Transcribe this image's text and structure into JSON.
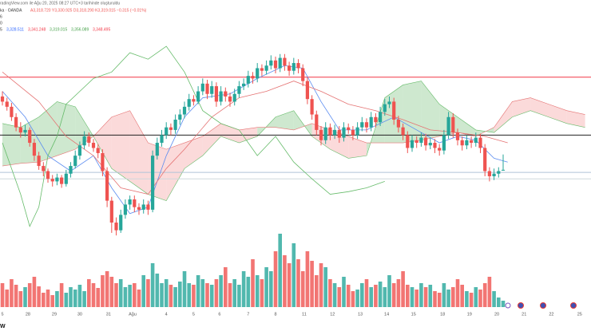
{
  "chart_data": {
    "type": "candlestick",
    "header": {
      "credit": "radingView.com ile Ağu 20, 2025 08:27 UTC+3 tarihinde oluşturuldu",
      "symbol": "ka · OANDA",
      "quote": "A3,318.720 Y3,330.925 D3,318.290 K3,319.015 −0.315 (−0.01%)",
      "rows": [
        "6",
        "0"
      ],
      "indicator": [
        {
          "text": "5",
          "color": "#333333"
        },
        {
          "text": "3,328.511",
          "color": "#2962ff"
        },
        {
          "text": "3,341.248",
          "color": "#f23645"
        },
        {
          "text": "3,319.015",
          "color": "#43a047"
        },
        {
          "text": "3,356.089",
          "color": "#43a047"
        },
        {
          "text": "3,348.495",
          "color": "#f23645"
        }
      ]
    },
    "up_color": "#26a69a",
    "down_color": "#ef5350",
    "xlim": [
      -0.53,
      129.3
    ],
    "ylim": [
      3265,
      3451
    ],
    "vlim": [
      0,
      100
    ],
    "xticks": [
      {
        "value": 0,
        "label": "5"
      },
      {
        "value": 5.6,
        "label": "28"
      },
      {
        "value": 11.4,
        "label": "29"
      },
      {
        "value": 17,
        "label": "30"
      },
      {
        "value": 23.3,
        "label": "31"
      },
      {
        "value": 28.6,
        "label": "Ağu"
      },
      {
        "value": 36,
        "label": "4"
      },
      {
        "value": 42,
        "label": "5"
      },
      {
        "value": 47.7,
        "label": "6"
      },
      {
        "value": 54,
        "label": "7"
      },
      {
        "value": 60,
        "label": "8"
      },
      {
        "value": 66.3,
        "label": "11"
      },
      {
        "value": 72.5,
        "label": "12"
      },
      {
        "value": 78.6,
        "label": "13"
      },
      {
        "value": 84.4,
        "label": "14"
      },
      {
        "value": 90.3,
        "label": "15"
      },
      {
        "value": 96.7,
        "label": "18"
      },
      {
        "value": 102.6,
        "label": "19"
      },
      {
        "value": 108.6,
        "label": "20"
      },
      {
        "value": 114.6,
        "label": "21"
      },
      {
        "value": 120.6,
        "label": "22"
      },
      {
        "value": 126.8,
        "label": "25"
      }
    ],
    "ohlc": [
      [
        3376,
        3380,
        3369,
        3372
      ],
      [
        3372,
        3375,
        3365,
        3368
      ],
      [
        3368,
        3371,
        3357,
        3360
      ],
      [
        3360,
        3363,
        3349,
        3352
      ],
      [
        3352,
        3356,
        3344,
        3348
      ],
      [
        3348,
        3354,
        3345,
        3350
      ],
      [
        3350,
        3352,
        3337,
        3340
      ],
      [
        3340,
        3343,
        3326,
        3330
      ],
      [
        3330,
        3333,
        3319,
        3322
      ],
      [
        3322,
        3325,
        3314,
        3318
      ],
      [
        3318,
        3320,
        3309,
        3312
      ],
      [
        3312,
        3315,
        3306,
        3310
      ],
      [
        3310,
        3316,
        3307,
        3313
      ],
      [
        3313,
        3315,
        3305,
        3308
      ],
      [
        3308,
        3319,
        3306,
        3316
      ],
      [
        3316,
        3325,
        3313,
        3322
      ],
      [
        3322,
        3334,
        3320,
        3330
      ],
      [
        3330,
        3341,
        3327,
        3338
      ],
      [
        3338,
        3349,
        3335,
        3345
      ],
      [
        3345,
        3348,
        3337,
        3340
      ],
      [
        3340,
        3343,
        3333,
        3336
      ],
      [
        3336,
        3339,
        3328,
        3332
      ],
      [
        3332,
        3335,
        3314,
        3318
      ],
      [
        3318,
        3321,
        3290,
        3295
      ],
      [
        3295,
        3298,
        3270,
        3278
      ],
      [
        3278,
        3282,
        3268,
        3272
      ],
      [
        3272,
        3288,
        3270,
        3284
      ],
      [
        3284,
        3296,
        3281,
        3292
      ],
      [
        3292,
        3299,
        3288,
        3296
      ],
      [
        3296,
        3299,
        3286,
        3290
      ],
      [
        3290,
        3293,
        3284,
        3288
      ],
      [
        3288,
        3296,
        3285,
        3292
      ],
      [
        3292,
        3295,
        3284,
        3288
      ],
      [
        3288,
        3334,
        3286,
        3330
      ],
      [
        3330,
        3344,
        3327,
        3340
      ],
      [
        3340,
        3350,
        3337,
        3346
      ],
      [
        3346,
        3356,
        3343,
        3352
      ],
      [
        3352,
        3355,
        3346,
        3350
      ],
      [
        3350,
        3362,
        3347,
        3358
      ],
      [
        3358,
        3366,
        3354,
        3362
      ],
      [
        3362,
        3372,
        3359,
        3368
      ],
      [
        3368,
        3378,
        3365,
        3374
      ],
      [
        3374,
        3377,
        3369,
        3372
      ],
      [
        3372,
        3384,
        3370,
        3380
      ],
      [
        3380,
        3390,
        3377,
        3386
      ],
      [
        3386,
        3389,
        3374,
        3378
      ],
      [
        3378,
        3388,
        3375,
        3384
      ],
      [
        3384,
        3387,
        3368,
        3372
      ],
      [
        3372,
        3384,
        3369,
        3380
      ],
      [
        3380,
        3383,
        3372,
        3376
      ],
      [
        3376,
        3379,
        3368,
        3372
      ],
      [
        3372,
        3382,
        3369,
        3378
      ],
      [
        3378,
        3388,
        3375,
        3384
      ],
      [
        3384,
        3390,
        3381,
        3386
      ],
      [
        3386,
        3396,
        3383,
        3392
      ],
      [
        3392,
        3395,
        3386,
        3390
      ],
      [
        3390,
        3402,
        3387,
        3398
      ],
      [
        3398,
        3401,
        3392,
        3396
      ],
      [
        3396,
        3404,
        3393,
        3400
      ],
      [
        3400,
        3408,
        3397,
        3404
      ],
      [
        3404,
        3407,
        3394,
        3398
      ],
      [
        3398,
        3409,
        3395,
        3406
      ],
      [
        3406,
        3409,
        3396,
        3400
      ],
      [
        3400,
        3403,
        3392,
        3396
      ],
      [
        3396,
        3406,
        3393,
        3402
      ],
      [
        3402,
        3405,
        3394,
        3398
      ],
      [
        3398,
        3401,
        3384,
        3388
      ],
      [
        3388,
        3391,
        3370,
        3374
      ],
      [
        3374,
        3377,
        3358,
        3362
      ],
      [
        3362,
        3365,
        3346,
        3350
      ],
      [
        3350,
        3353,
        3338,
        3342
      ],
      [
        3342,
        3356,
        3339,
        3352
      ],
      [
        3352,
        3355,
        3342,
        3346
      ],
      [
        3346,
        3354,
        3343,
        3350
      ],
      [
        3350,
        3353,
        3340,
        3344
      ],
      [
        3344,
        3356,
        3341,
        3352
      ],
      [
        3352,
        3355,
        3347,
        3350
      ],
      [
        3350,
        3353,
        3342,
        3346
      ],
      [
        3346,
        3356,
        3343,
        3352
      ],
      [
        3352,
        3360,
        3349,
        3356
      ],
      [
        3356,
        3359,
        3348,
        3352
      ],
      [
        3352,
        3364,
        3349,
        3360
      ],
      [
        3360,
        3363,
        3352,
        3356
      ],
      [
        3356,
        3368,
        3353,
        3364
      ],
      [
        3364,
        3374,
        3361,
        3370
      ],
      [
        3370,
        3376,
        3367,
        3372
      ],
      [
        3372,
        3375,
        3354,
        3358
      ],
      [
        3358,
        3361,
        3348,
        3352
      ],
      [
        3352,
        3355,
        3342,
        3346
      ],
      [
        3346,
        3349,
        3332,
        3336
      ],
      [
        3336,
        3346,
        3333,
        3342
      ],
      [
        3342,
        3345,
        3336,
        3340
      ],
      [
        3340,
        3348,
        3337,
        3344
      ],
      [
        3344,
        3347,
        3334,
        3338
      ],
      [
        3338,
        3344,
        3335,
        3340
      ],
      [
        3340,
        3343,
        3332,
        3336
      ],
      [
        3336,
        3339,
        3330,
        3334
      ],
      [
        3334,
        3350,
        3331,
        3346
      ],
      [
        3346,
        3364,
        3343,
        3360
      ],
      [
        3360,
        3363,
        3344,
        3348
      ],
      [
        3348,
        3351,
        3338,
        3342
      ],
      [
        3342,
        3345,
        3334,
        3338
      ],
      [
        3338,
        3346,
        3335,
        3342
      ],
      [
        3342,
        3345,
        3336,
        3340
      ],
      [
        3340,
        3348,
        3337,
        3344
      ],
      [
        3344,
        3347,
        3332,
        3336
      ],
      [
        3336,
        3339,
        3314,
        3318
      ],
      [
        3318,
        3321,
        3310,
        3314
      ],
      [
        3314,
        3320,
        3311,
        3316
      ],
      [
        3316,
        3321,
        3313,
        3318
      ],
      [
        3318.72,
        3330.925,
        3318.29,
        3319.015
      ]
    ],
    "volume": [
      30,
      22,
      35,
      28,
      20,
      25,
      30,
      38,
      26,
      18,
      22,
      15,
      20,
      30,
      18,
      25,
      22,
      28,
      20,
      35,
      30,
      24,
      40,
      45,
      38,
      30,
      35,
      25,
      28,
      30,
      22,
      40,
      35,
      55,
      42,
      30,
      35,
      28,
      25,
      32,
      45,
      30,
      28,
      40,
      35,
      30,
      28,
      35,
      40,
      50,
      30,
      35,
      28,
      45,
      38,
      60,
      40,
      35,
      50,
      45,
      70,
      92,
      65,
      55,
      80,
      60,
      45,
      70,
      58,
      40,
      55,
      50,
      35,
      30,
      25,
      38,
      28,
      20,
      22,
      30,
      35,
      25,
      28,
      32,
      25,
      40,
      30,
      35,
      45,
      28,
      25,
      22,
      30,
      25,
      28,
      20,
      18,
      30,
      22,
      25,
      35,
      28,
      20,
      18,
      25,
      22,
      30,
      38,
      20,
      12,
      8
    ],
    "lines": [
      {
        "color": "#5b8cf0",
        "x": [
          0,
          5,
          10,
          15,
          20,
          24,
          28,
          32,
          36,
          40,
          44,
          50,
          56,
          62,
          66,
          70,
          74,
          80,
          86,
          90,
          96,
          100,
          104,
          108,
          111
        ],
        "values": [
          3380,
          3360,
          3330,
          3318,
          3330,
          3305,
          3285,
          3290,
          3330,
          3360,
          3375,
          3378,
          3390,
          3400,
          3398,
          3372,
          3350,
          3350,
          3360,
          3352,
          3340,
          3345,
          3342,
          3328,
          3325
        ]
      },
      {
        "color": "#e57373",
        "x": [
          0,
          8,
          14,
          20,
          26,
          32,
          36,
          40,
          46,
          52,
          58,
          64,
          70,
          76,
          82,
          88,
          94,
          100,
          106,
          111
        ],
        "values": [
          3395,
          3372,
          3345,
          3330,
          3305,
          3300,
          3320,
          3335,
          3360,
          3375,
          3380,
          3388,
          3380,
          3370,
          3365,
          3358,
          3350,
          3348,
          3345,
          3340
        ]
      },
      {
        "color": "#66bb6a",
        "x": [
          0,
          4,
          6,
          8,
          10,
          12,
          14,
          17,
          20,
          24,
          28,
          32,
          36,
          40,
          44,
          48,
          52,
          56,
          60,
          64,
          68,
          72,
          76,
          80,
          84
        ],
        "values": [
          3340,
          3300,
          3275,
          3290,
          3330,
          3345,
          3370,
          3380,
          3390,
          3395,
          3410,
          3405,
          3415,
          3395,
          3365,
          3355,
          3350,
          3330,
          3345,
          3325,
          3312,
          3300,
          3302,
          3305,
          3310
        ]
      }
    ],
    "cloud": {
      "x": [
        0,
        4,
        8,
        12,
        16,
        20,
        24,
        28,
        32,
        36,
        40,
        44,
        48,
        52,
        56,
        60,
        64,
        68,
        72,
        76,
        80,
        84,
        88,
        92,
        96,
        100,
        104,
        108,
        112,
        116,
        120,
        124,
        128
      ],
      "span_a": [
        3355,
        3352,
        3360,
        3372,
        3368,
        3345,
        3320,
        3310,
        3300,
        3295,
        3320,
        3330,
        3345,
        3340,
        3345,
        3360,
        3365,
        3345,
        3335,
        3328,
        3330,
        3375,
        3385,
        3388,
        3370,
        3360,
        3350,
        3348,
        3360,
        3365,
        3360,
        3355,
        3352
      ],
      "span_b": [
        3322,
        3324,
        3325,
        3330,
        3335,
        3345,
        3360,
        3365,
        3340,
        3335,
        3340,
        3345,
        3355,
        3350,
        3352,
        3352,
        3350,
        3355,
        3350,
        3345,
        3340,
        3340,
        3340,
        3342,
        3345,
        3348,
        3345,
        3352,
        3372,
        3375,
        3370,
        3365,
        3362
      ],
      "up_color": "#a5d6a7",
      "down_color": "#f8bbbb"
    },
    "hlines": [
      {
        "value": 3391,
        "color": "#f23645"
      },
      {
        "value": 3346,
        "color": "#222222"
      },
      {
        "value": 3317,
        "color": "#b0c4d8"
      },
      {
        "value": 3312,
        "color": "#cfd8dc"
      }
    ]
  }
}
